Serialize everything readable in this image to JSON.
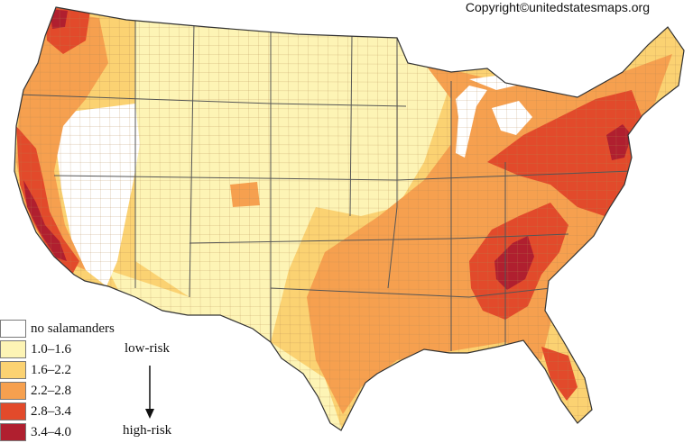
{
  "copyright": "Copyright©unitedstatesmaps.org",
  "colors": {
    "no_salamanders": "#ffffff",
    "band_1": "#fdf4b5",
    "band_2": "#fbd272",
    "band_3": "#f6a04f",
    "band_4": "#e24a2b",
    "band_5": "#b01f2f",
    "county_lines": "#b48a55",
    "state_lines": "#555555"
  },
  "legend": {
    "items": [
      {
        "label": "no salamanders",
        "color": "#ffffff"
      },
      {
        "label": "1.0–1.6",
        "color": "#fdf4b5"
      },
      {
        "label": "1.6–2.2",
        "color": "#fbd272"
      },
      {
        "label": "2.2–2.8",
        "color": "#f6a04f"
      },
      {
        "label": "2.8–3.4",
        "color": "#e24a2b"
      },
      {
        "label": "3.4–4.0",
        "color": "#b01f2f"
      }
    ],
    "low_label": "low-risk",
    "high_label": "high-risk"
  }
}
